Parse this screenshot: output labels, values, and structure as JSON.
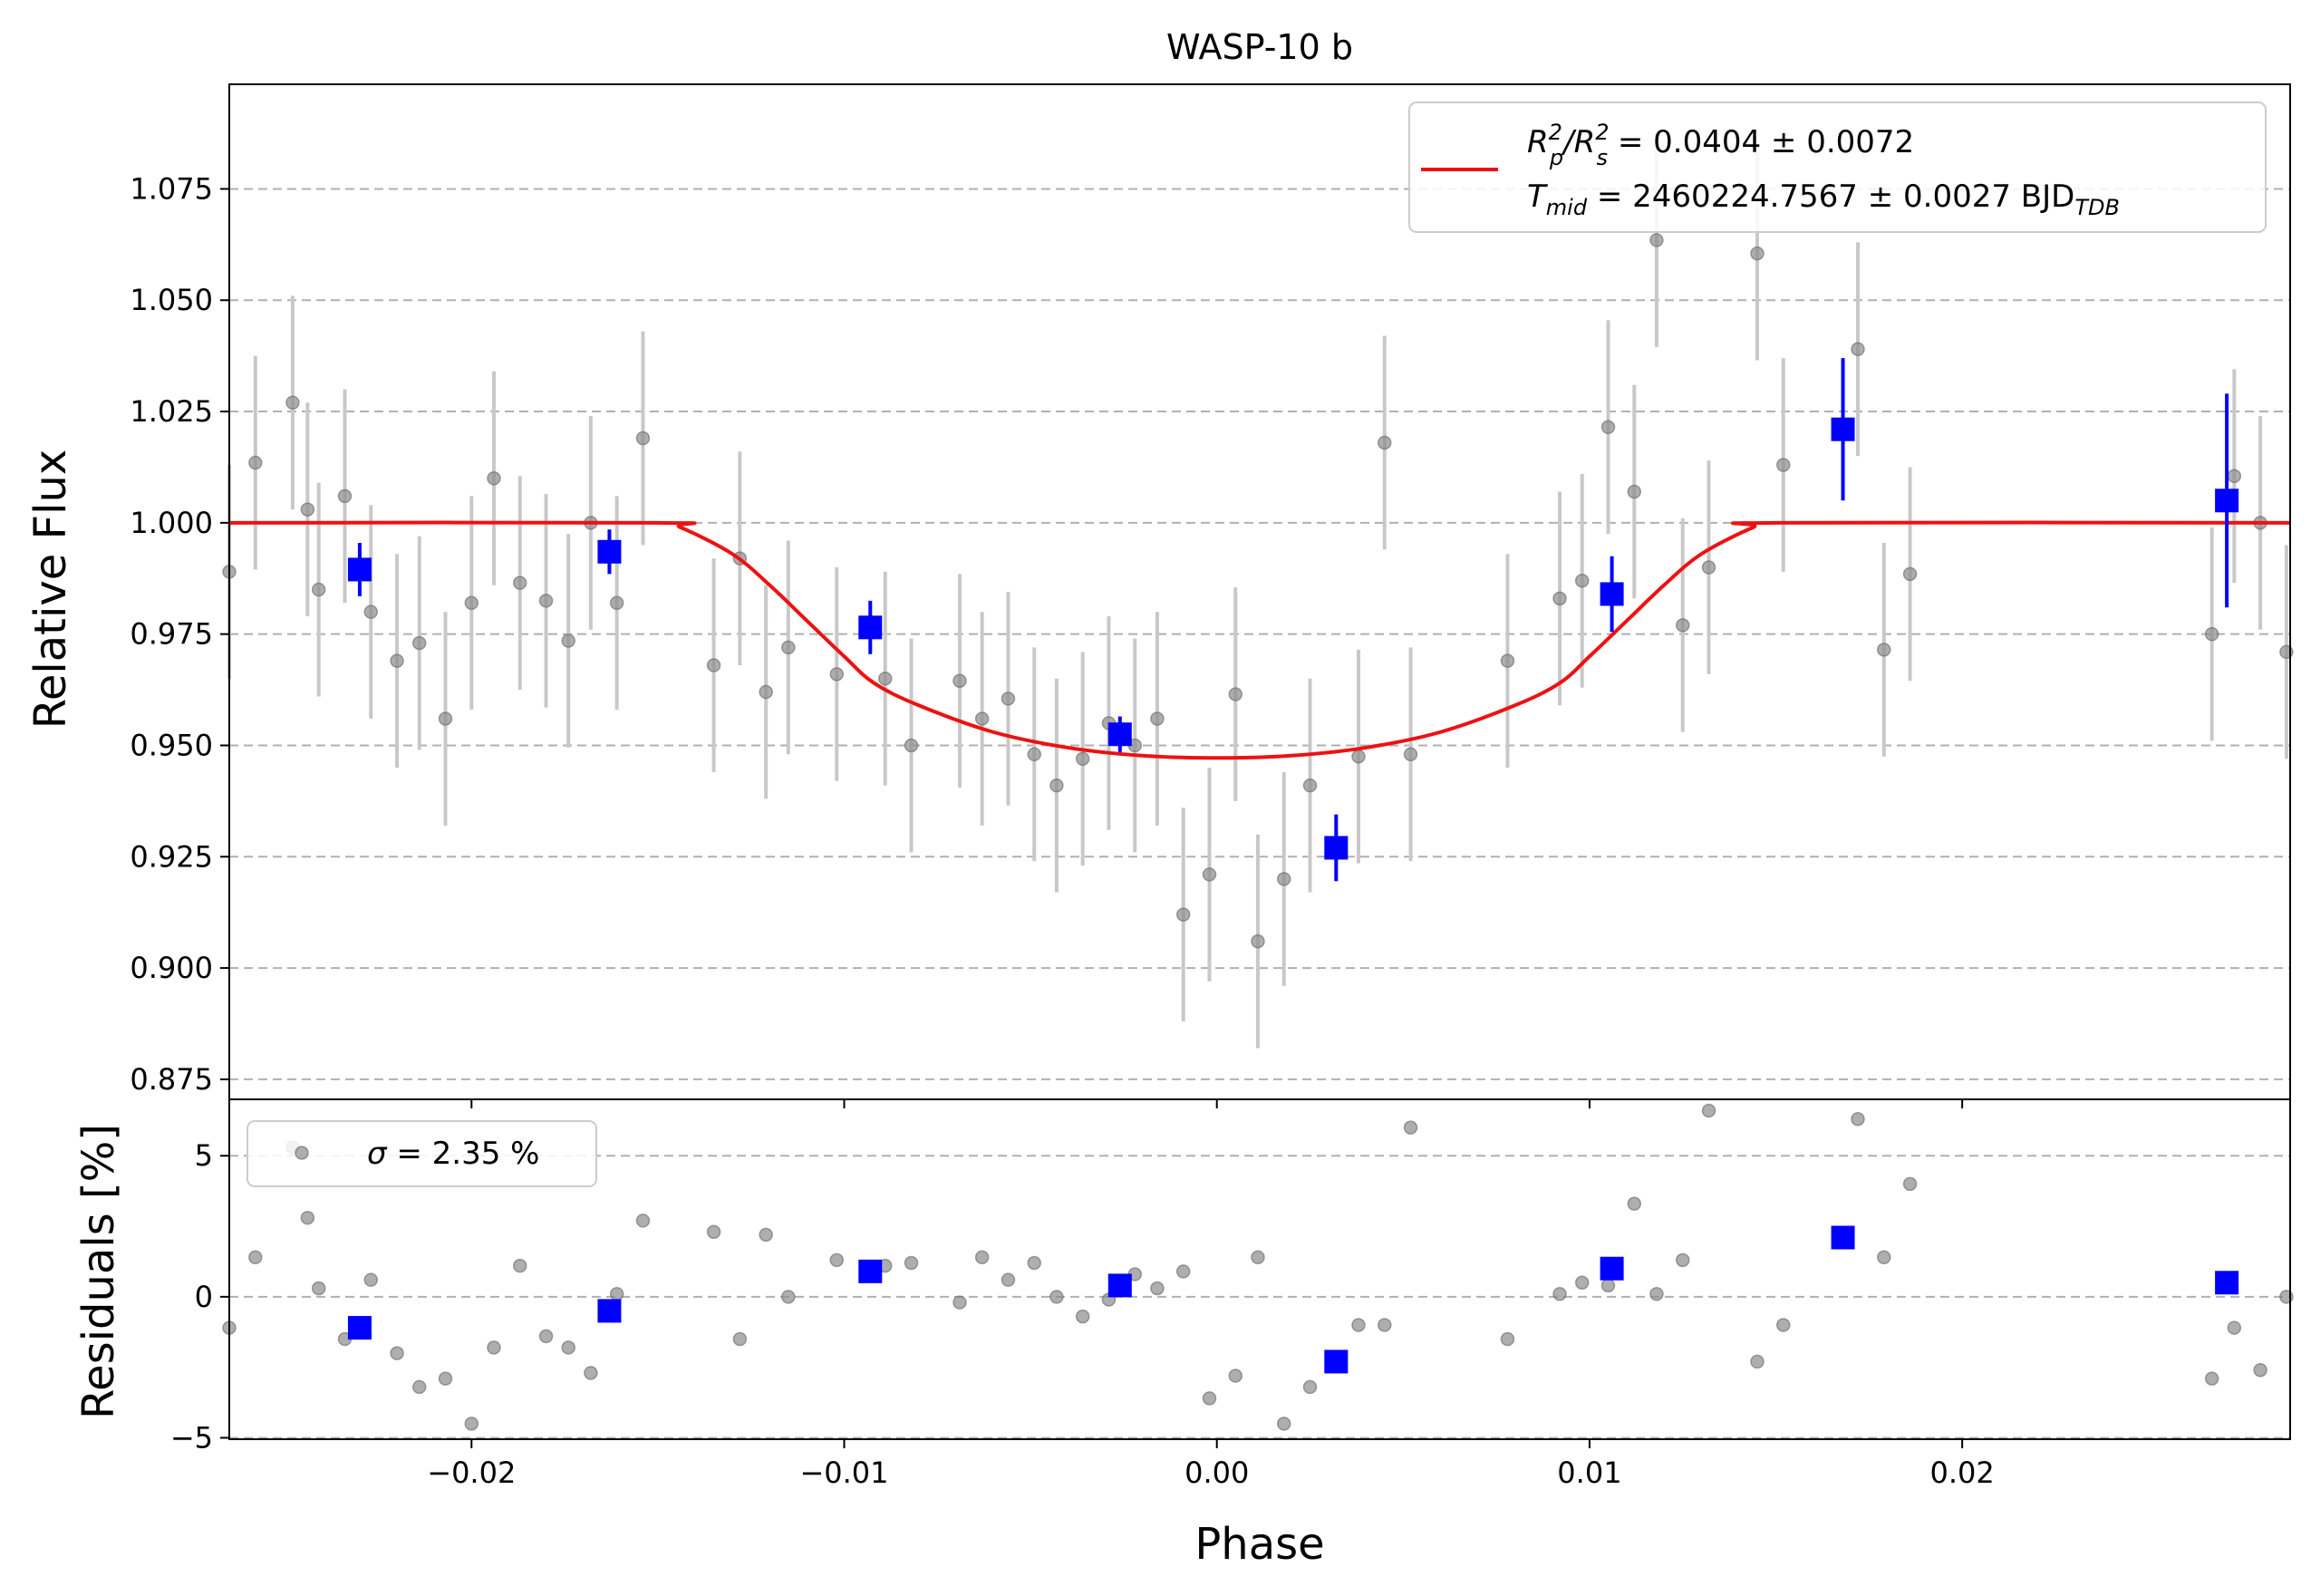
{
  "figure": {
    "title": "WASP-10 b",
    "xlabel": "Phase",
    "top_ylabel": "Relative Flux",
    "bottom_ylabel": "Residuals [%]"
  },
  "legend_top": {
    "line1_prefix": "R",
    "line1_sup1": "2",
    "line1_sub1": "p",
    "line1_mid": "/R",
    "line1_sup2": "2",
    "line1_sub2": "s",
    "line1_value": " = 0.0404 ± 0.0072",
    "line2_prefix": "T",
    "line2_sub": "mid",
    "line2_value": " = 2460224.7567 ± 0.0027 BJD",
    "line2_unit_sub": "TDB"
  },
  "legend_bottom": {
    "sigma_symbol": "σ",
    "sigma_text": " = 2.35 %"
  },
  "colors": {
    "data_gray": "#8c8c8c",
    "errorbar_gray": "#c8c8c8",
    "binned_blue": "#0000ff",
    "model_red": "#ee1111",
    "grid": "#b0b0b0"
  },
  "chart_data": [
    {
      "panel": "light-curve",
      "type": "scatter",
      "title": "WASP-10 b",
      "ylabel": "Relative Flux",
      "xlim": [
        -0.0265,
        0.0288
      ],
      "ylim": [
        0.8705,
        1.0985
      ],
      "xticks": [
        -0.02,
        -0.01,
        0.0,
        0.01,
        0.02
      ],
      "xtick_labels": [
        "−0.02",
        "−0.01",
        "0.00",
        "0.01",
        "0.02"
      ],
      "yticks": [
        0.875,
        0.9,
        0.925,
        0.95,
        0.975,
        1.0,
        1.025,
        1.05,
        1.075
      ],
      "ytick_labels": [
        "0.875",
        "0.900",
        "0.925",
        "0.950",
        "0.975",
        "1.000",
        "1.025",
        "1.050",
        "1.075"
      ],
      "grid": "horizontal dashed",
      "legend_position": "upper right",
      "series": [
        {
          "kind": "unbinned",
          "x": [
            -0.0265,
            -0.0258,
            -0.0248,
            -0.0244,
            -0.0241,
            -0.0234,
            -0.0227,
            -0.022,
            -0.0214,
            -0.0207,
            -0.02,
            -0.0194,
            -0.0187,
            -0.018,
            -0.0174,
            -0.0168,
            -0.0161,
            -0.0154,
            -0.0135,
            -0.0128,
            -0.0121,
            -0.0115,
            -0.0102,
            -0.0089,
            -0.0082,
            -0.0069,
            -0.0063,
            -0.0056,
            -0.0049,
            -0.0043,
            -0.0036,
            -0.0029,
            -0.0022,
            -0.0016,
            -0.0009,
            -0.0002,
            0.0005,
            0.0011,
            0.0018,
            0.0025,
            0.0038,
            0.0045,
            0.0052,
            0.0078,
            0.0092,
            0.0098,
            0.0105,
            0.0112,
            0.0118,
            0.0125,
            0.0132,
            0.0145,
            0.0152,
            0.0172,
            0.0179,
            0.0186,
            0.0267,
            0.0273,
            0.028,
            0.0287
          ],
          "y": [
            0.989,
            1.0135,
            1.027,
            1.003,
            0.985,
            1.006,
            0.98,
            0.969,
            0.973,
            0.956,
            0.982,
            1.01,
            0.9865,
            0.9825,
            0.9735,
            1.0,
            0.982,
            1.019,
            0.968,
            0.992,
            0.962,
            0.972,
            0.966,
            0.965,
            0.95,
            0.9645,
            0.956,
            0.9605,
            0.948,
            0.941,
            0.947,
            0.955,
            0.95,
            0.956,
            0.912,
            0.921,
            0.9615,
            0.906,
            0.92,
            0.941,
            0.9475,
            1.018,
            0.948,
            0.969,
            0.983,
            0.987,
            1.0215,
            1.007,
            1.0635,
            0.977,
            0.99,
            1.0605,
            1.013,
            1.039,
            0.9715,
            0.9885,
            0.975,
            1.0105,
            1.0,
            0.971
          ],
          "yerr": 0.024
        },
        {
          "kind": "binned",
          "x": [
            -0.023,
            -0.0163,
            -0.0093,
            -0.0026,
            0.0032,
            0.0106,
            0.0168,
            0.0271
          ],
          "y": [
            0.9895,
            0.9935,
            0.9765,
            0.9525,
            0.927,
            0.984,
            1.021,
            1.005
          ],
          "yerr": [
            0.006,
            0.005,
            0.006,
            0.004,
            0.0075,
            0.0085,
            0.016,
            0.024
          ]
        },
        {
          "kind": "model",
          "x": [
            -0.0265,
            -0.015,
            -0.0144,
            -0.013,
            -0.012,
            -0.011,
            -0.01,
            -0.0092,
            -0.008,
            -0.006,
            -0.004,
            -0.002,
            0.0,
            0.002,
            0.004,
            0.006,
            0.008,
            0.0092,
            0.01,
            0.011,
            0.012,
            0.013,
            0.0144,
            0.015,
            0.0288
          ],
          "y": [
            1.0,
            1.0,
            0.999,
            0.993,
            0.986,
            0.978,
            0.97,
            0.964,
            0.959,
            0.953,
            0.9495,
            0.9477,
            0.9472,
            0.9477,
            0.9495,
            0.953,
            0.959,
            0.964,
            0.97,
            0.978,
            0.986,
            0.993,
            0.999,
            1.0,
            1.0
          ]
        }
      ]
    },
    {
      "panel": "residuals",
      "type": "scatter",
      "xlabel": "Phase",
      "ylabel": "Residuals [%]",
      "xlim": [
        -0.0265,
        0.0288
      ],
      "ylim": [
        -5.05,
        7.0
      ],
      "yticks": [
        -5,
        0,
        5
      ],
      "ytick_labels": [
        "−5",
        "0",
        "5"
      ],
      "grid": "horizontal dashed",
      "legend_position": "upper left",
      "series": [
        {
          "kind": "unbinned",
          "x": [
            -0.0265,
            -0.0258,
            -0.0248,
            -0.0244,
            -0.0241,
            -0.0234,
            -0.0227,
            -0.022,
            -0.0214,
            -0.0207,
            -0.02,
            -0.0194,
            -0.0187,
            -0.018,
            -0.0174,
            -0.0168,
            -0.0161,
            -0.0154,
            -0.0135,
            -0.0128,
            -0.0121,
            -0.0115,
            -0.0102,
            -0.0089,
            -0.0082,
            -0.0069,
            -0.0063,
            -0.0056,
            -0.0049,
            -0.0043,
            -0.0036,
            -0.0029,
            -0.0022,
            -0.0016,
            -0.0009,
            -0.0002,
            0.0005,
            0.0011,
            0.0018,
            0.0025,
            0.0038,
            0.0045,
            0.0052,
            0.0078,
            0.0092,
            0.0098,
            0.0105,
            0.0112,
            0.0118,
            0.0125,
            0.0132,
            0.0145,
            0.0152,
            0.0172,
            0.0179,
            0.0186,
            0.0267,
            0.0273,
            0.028,
            0.0287
          ],
          "y": [
            -1.1,
            1.4,
            5.3,
            2.8,
            0.3,
            -1.5,
            0.6,
            -2.0,
            -3.2,
            -2.9,
            -4.5,
            -1.8,
            1.1,
            -1.4,
            -1.8,
            -2.7,
            0.1,
            2.7,
            2.3,
            -1.5,
            2.2,
            0.0,
            1.3,
            1.1,
            1.2,
            -0.2,
            1.4,
            0.6,
            1.2,
            0.0,
            -0.7,
            -0.1,
            0.8,
            0.3,
            0.9,
            -3.6,
            -2.8,
            1.4,
            -4.5,
            -3.2,
            -1.0,
            -1.0,
            6.0,
            -1.5,
            0.1,
            0.5,
            0.4,
            3.3,
            0.1,
            1.3,
            6.6,
            -2.3,
            -1.0,
            6.3,
            1.4,
            4.0,
            -2.9,
            -1.1,
            -2.6,
            0.0
          ]
        },
        {
          "kind": "binned",
          "x": [
            -0.023,
            -0.0163,
            -0.0093,
            -0.0026,
            0.0032,
            0.0106,
            0.0168,
            0.0271
          ],
          "y": [
            -1.1,
            -0.5,
            0.9,
            0.4,
            -2.3,
            1.0,
            2.1,
            0.5
          ]
        }
      ]
    }
  ]
}
